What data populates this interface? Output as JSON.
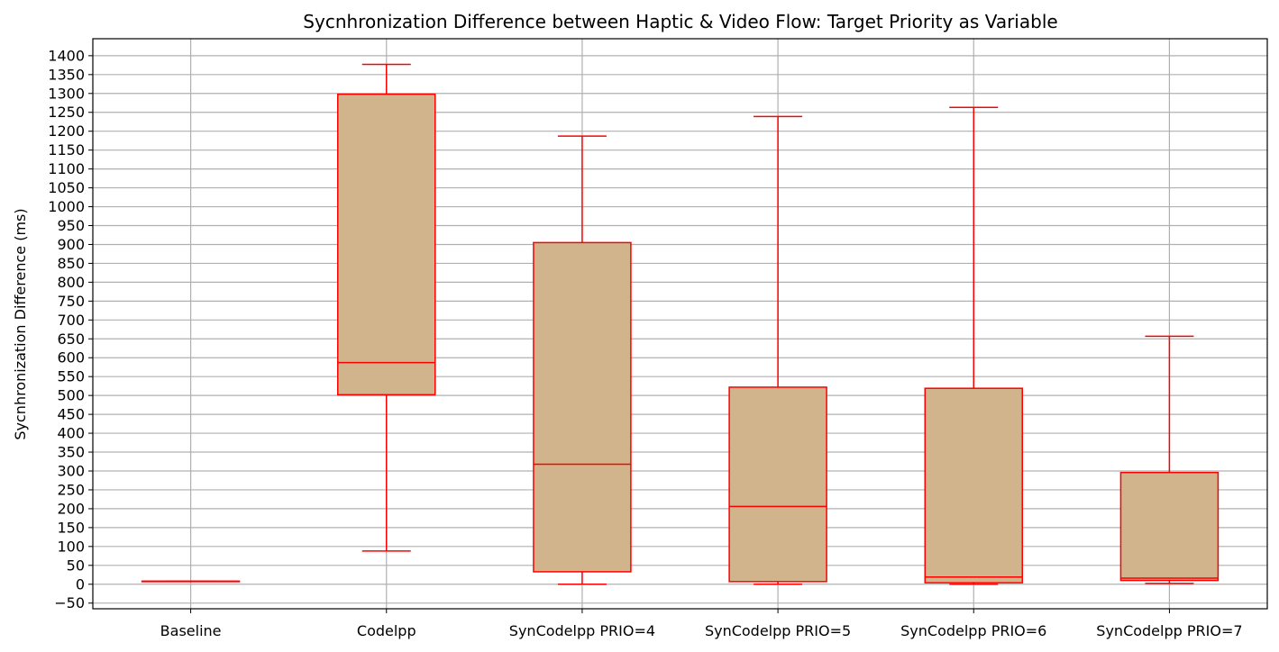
{
  "chart_data": {
    "type": "box",
    "title": "Sycnhronization Difference between Haptic & Video Flow: Target Priority as Variable",
    "xlabel": "",
    "ylabel": "Sycnhronization Difference (ms)",
    "ylim": [
      -65,
      1445
    ],
    "yticks": [
      -50,
      0,
      50,
      100,
      150,
      200,
      250,
      300,
      350,
      400,
      450,
      500,
      550,
      600,
      650,
      700,
      750,
      800,
      850,
      900,
      950,
      1000,
      1050,
      1100,
      1150,
      1200,
      1250,
      1300,
      1350,
      1400
    ],
    "grid": true,
    "box_fill": "#D2B48C",
    "box_edge": "#FF0000",
    "grid_color": "#B0B0B0",
    "categories": [
      "Baseline",
      "Codelpp",
      "SynCodelpp PRIO=4",
      "SynCodelpp PRIO=5",
      "SynCodelpp PRIO=6",
      "SynCodelpp PRIO=7"
    ],
    "boxes": [
      {
        "whisker_low": 8,
        "q1": 8,
        "median": 8,
        "q3": 8,
        "whisker_high": 8
      },
      {
        "whisker_low": 88,
        "q1": 502,
        "median": 587,
        "q3": 1298,
        "whisker_high": 1377
      },
      {
        "whisker_low": 0,
        "q1": 33,
        "median": 318,
        "q3": 905,
        "whisker_high": 1187
      },
      {
        "whisker_low": 0,
        "q1": 7,
        "median": 206,
        "q3": 522,
        "whisker_high": 1239
      },
      {
        "whisker_low": 0,
        "q1": 4,
        "median": 19,
        "q3": 519,
        "whisker_high": 1263
      },
      {
        "whisker_low": 2,
        "q1": 10,
        "median": 16,
        "q3": 296,
        "whisker_high": 657
      }
    ]
  }
}
